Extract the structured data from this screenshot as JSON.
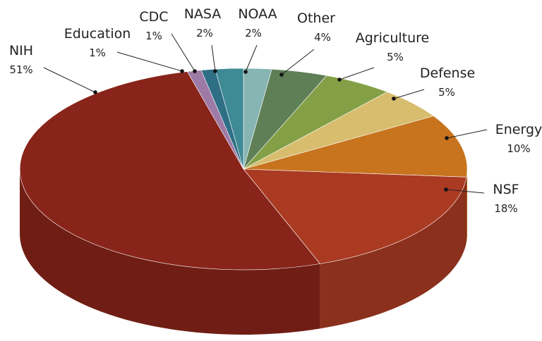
{
  "chart_data": {
    "type": "pie",
    "style": "3d",
    "start": "12 o'clock",
    "direction": "clockwise",
    "title": "",
    "legend": "none",
    "slices": [
      {
        "name": "NOAA",
        "value": 2,
        "label": "2%",
        "color": "#86b5b3"
      },
      {
        "name": "Other",
        "value": 4,
        "label": "4%",
        "color": "#5f7f56"
      },
      {
        "name": "Agriculture",
        "value": 5,
        "label": "5%",
        "color": "#84a047"
      },
      {
        "name": "Defense",
        "value": 5,
        "label": "5%",
        "color": "#d7bd6d"
      },
      {
        "name": "Energy",
        "value": 10,
        "label": "10%",
        "color": "#c8741e"
      },
      {
        "name": "NSF",
        "value": 18,
        "label": "18%",
        "color": "#aa3a22"
      },
      {
        "name": "NIH",
        "value": 51,
        "label": "51%",
        "color": "#88241a"
      },
      {
        "name": "Education",
        "value": 1,
        "label": "1%",
        "color": "#9e7aa6"
      },
      {
        "name": "CDC",
        "value": 1,
        "label": "1%",
        "color": "#2f6f86"
      },
      {
        "name": "NASA",
        "value": 2,
        "label": "2%",
        "color": "#3e8a95"
      }
    ]
  }
}
